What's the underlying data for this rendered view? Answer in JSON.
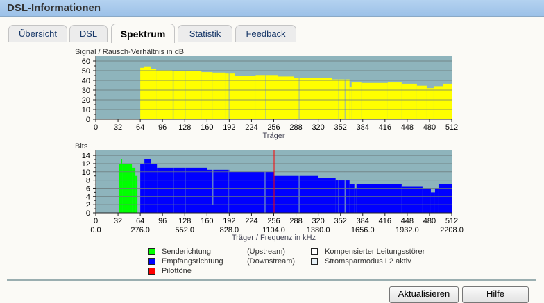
{
  "window": {
    "title": "DSL-Informationen"
  },
  "tabs": [
    {
      "label": "Übersicht",
      "active": false
    },
    {
      "label": "DSL",
      "active": false
    },
    {
      "label": "Spektrum",
      "active": true
    },
    {
      "label": "Statistik",
      "active": false
    },
    {
      "label": "Feedback",
      "active": false
    }
  ],
  "colors": {
    "plot_bg": "#8eb4bc",
    "snr": "#ffff00",
    "upstream": "#00ff00",
    "downstream": "#0000ff",
    "pilot": "#ff0000"
  },
  "chart_data": [
    {
      "type": "bar",
      "title": "Signal / Rausch-Verhältnis in dB",
      "xlabel": "Träger",
      "ylim": [
        0,
        65
      ],
      "xlim": [
        0,
        512
      ],
      "yticks": [
        "0",
        "10",
        "20",
        "30",
        "40",
        "50",
        "60"
      ],
      "xticks": [
        "0",
        "32",
        "64",
        "96",
        "128",
        "160",
        "192",
        "224",
        "256",
        "288",
        "320",
        "352",
        "384",
        "416",
        "448",
        "480",
        "512"
      ],
      "grid": true,
      "segments": [
        [
          64,
          69,
          53
        ],
        [
          69,
          79,
          54.5
        ],
        [
          79,
          87,
          52
        ],
        [
          87,
          110,
          50.5
        ],
        [
          110,
          152,
          50
        ],
        [
          152,
          168,
          48.5
        ],
        [
          168,
          186,
          48
        ],
        [
          186,
          200,
          47
        ],
        [
          200,
          230,
          45
        ],
        [
          230,
          262,
          45.5
        ],
        [
          262,
          285,
          44
        ],
        [
          285,
          340,
          42.5
        ],
        [
          340,
          365,
          41
        ],
        [
          365,
          368,
          33
        ],
        [
          368,
          382,
          38.5
        ],
        [
          382,
          420,
          38
        ],
        [
          420,
          440,
          38.5
        ],
        [
          440,
          462,
          36.5
        ],
        [
          462,
          476,
          34.5
        ],
        [
          476,
          486,
          32
        ],
        [
          486,
          500,
          34
        ],
        [
          500,
          512,
          36.5
        ]
      ],
      "zero_carriers": [
        111,
        128,
        190,
        192,
        244,
        292,
        349,
        358
      ]
    },
    {
      "type": "bar",
      "title": "Bits",
      "xlabel": "Träger / Frequenz in kHz",
      "ylim": [
        0,
        15.2
      ],
      "xlim": [
        0,
        512
      ],
      "yticks": [
        "0",
        "2",
        "4",
        "6",
        "8",
        "10",
        "12",
        "14"
      ],
      "xticks": [
        "0",
        "32",
        "64",
        "96",
        "128",
        "160",
        "192",
        "224",
        "256",
        "288",
        "320",
        "352",
        "384",
        "416",
        "448",
        "480",
        "512"
      ],
      "freq_ticks": [
        "0.0",
        "276.0",
        "552.0",
        "828.0",
        "1104.0",
        "1380.0",
        "1656.0",
        "1932.0",
        "2208.0"
      ],
      "grid": true,
      "upstream": [
        [
          33,
          36,
          12
        ],
        [
          36,
          38,
          13
        ],
        [
          38,
          52,
          12
        ],
        [
          52,
          57,
          11
        ],
        [
          57,
          60,
          9
        ]
      ],
      "downstream": [
        [
          64,
          70,
          12
        ],
        [
          70,
          79,
          13
        ],
        [
          79,
          88,
          12
        ],
        [
          88,
          160,
          11
        ],
        [
          160,
          192,
          10.5
        ],
        [
          192,
          256,
          10
        ],
        [
          256,
          320,
          9
        ],
        [
          320,
          345,
          8.5
        ],
        [
          345,
          365,
          8
        ],
        [
          365,
          372,
          7
        ],
        [
          372,
          375,
          6
        ],
        [
          375,
          440,
          7
        ],
        [
          440,
          470,
          6.5
        ],
        [
          470,
          482,
          6
        ],
        [
          482,
          488,
          5
        ],
        [
          488,
          493,
          6
        ],
        [
          493,
          512,
          7
        ]
      ],
      "zero_carriers": [
        111,
        128,
        190,
        243,
        292,
        349,
        358
      ],
      "dips": [
        [
          168,
          2
        ]
      ],
      "pilot_carrier": 256
    }
  ],
  "legend": [
    {
      "label": "Senderichtung",
      "extra": "(Upstream)",
      "color": "#00ff00"
    },
    {
      "label": "Empfangsrichtung",
      "extra": "(Downstream)",
      "color": "#0000ff"
    },
    {
      "label": "Pilottöne",
      "color": "#ff0000"
    },
    {
      "label": "Kompensierter Leitungsstörer",
      "color": "#ffffff"
    },
    {
      "label": "Stromsparmodus L2 aktiv",
      "color": "#e6f0f6"
    }
  ],
  "buttons": {
    "refresh": "Aktualisieren",
    "help": "Hilfe"
  }
}
